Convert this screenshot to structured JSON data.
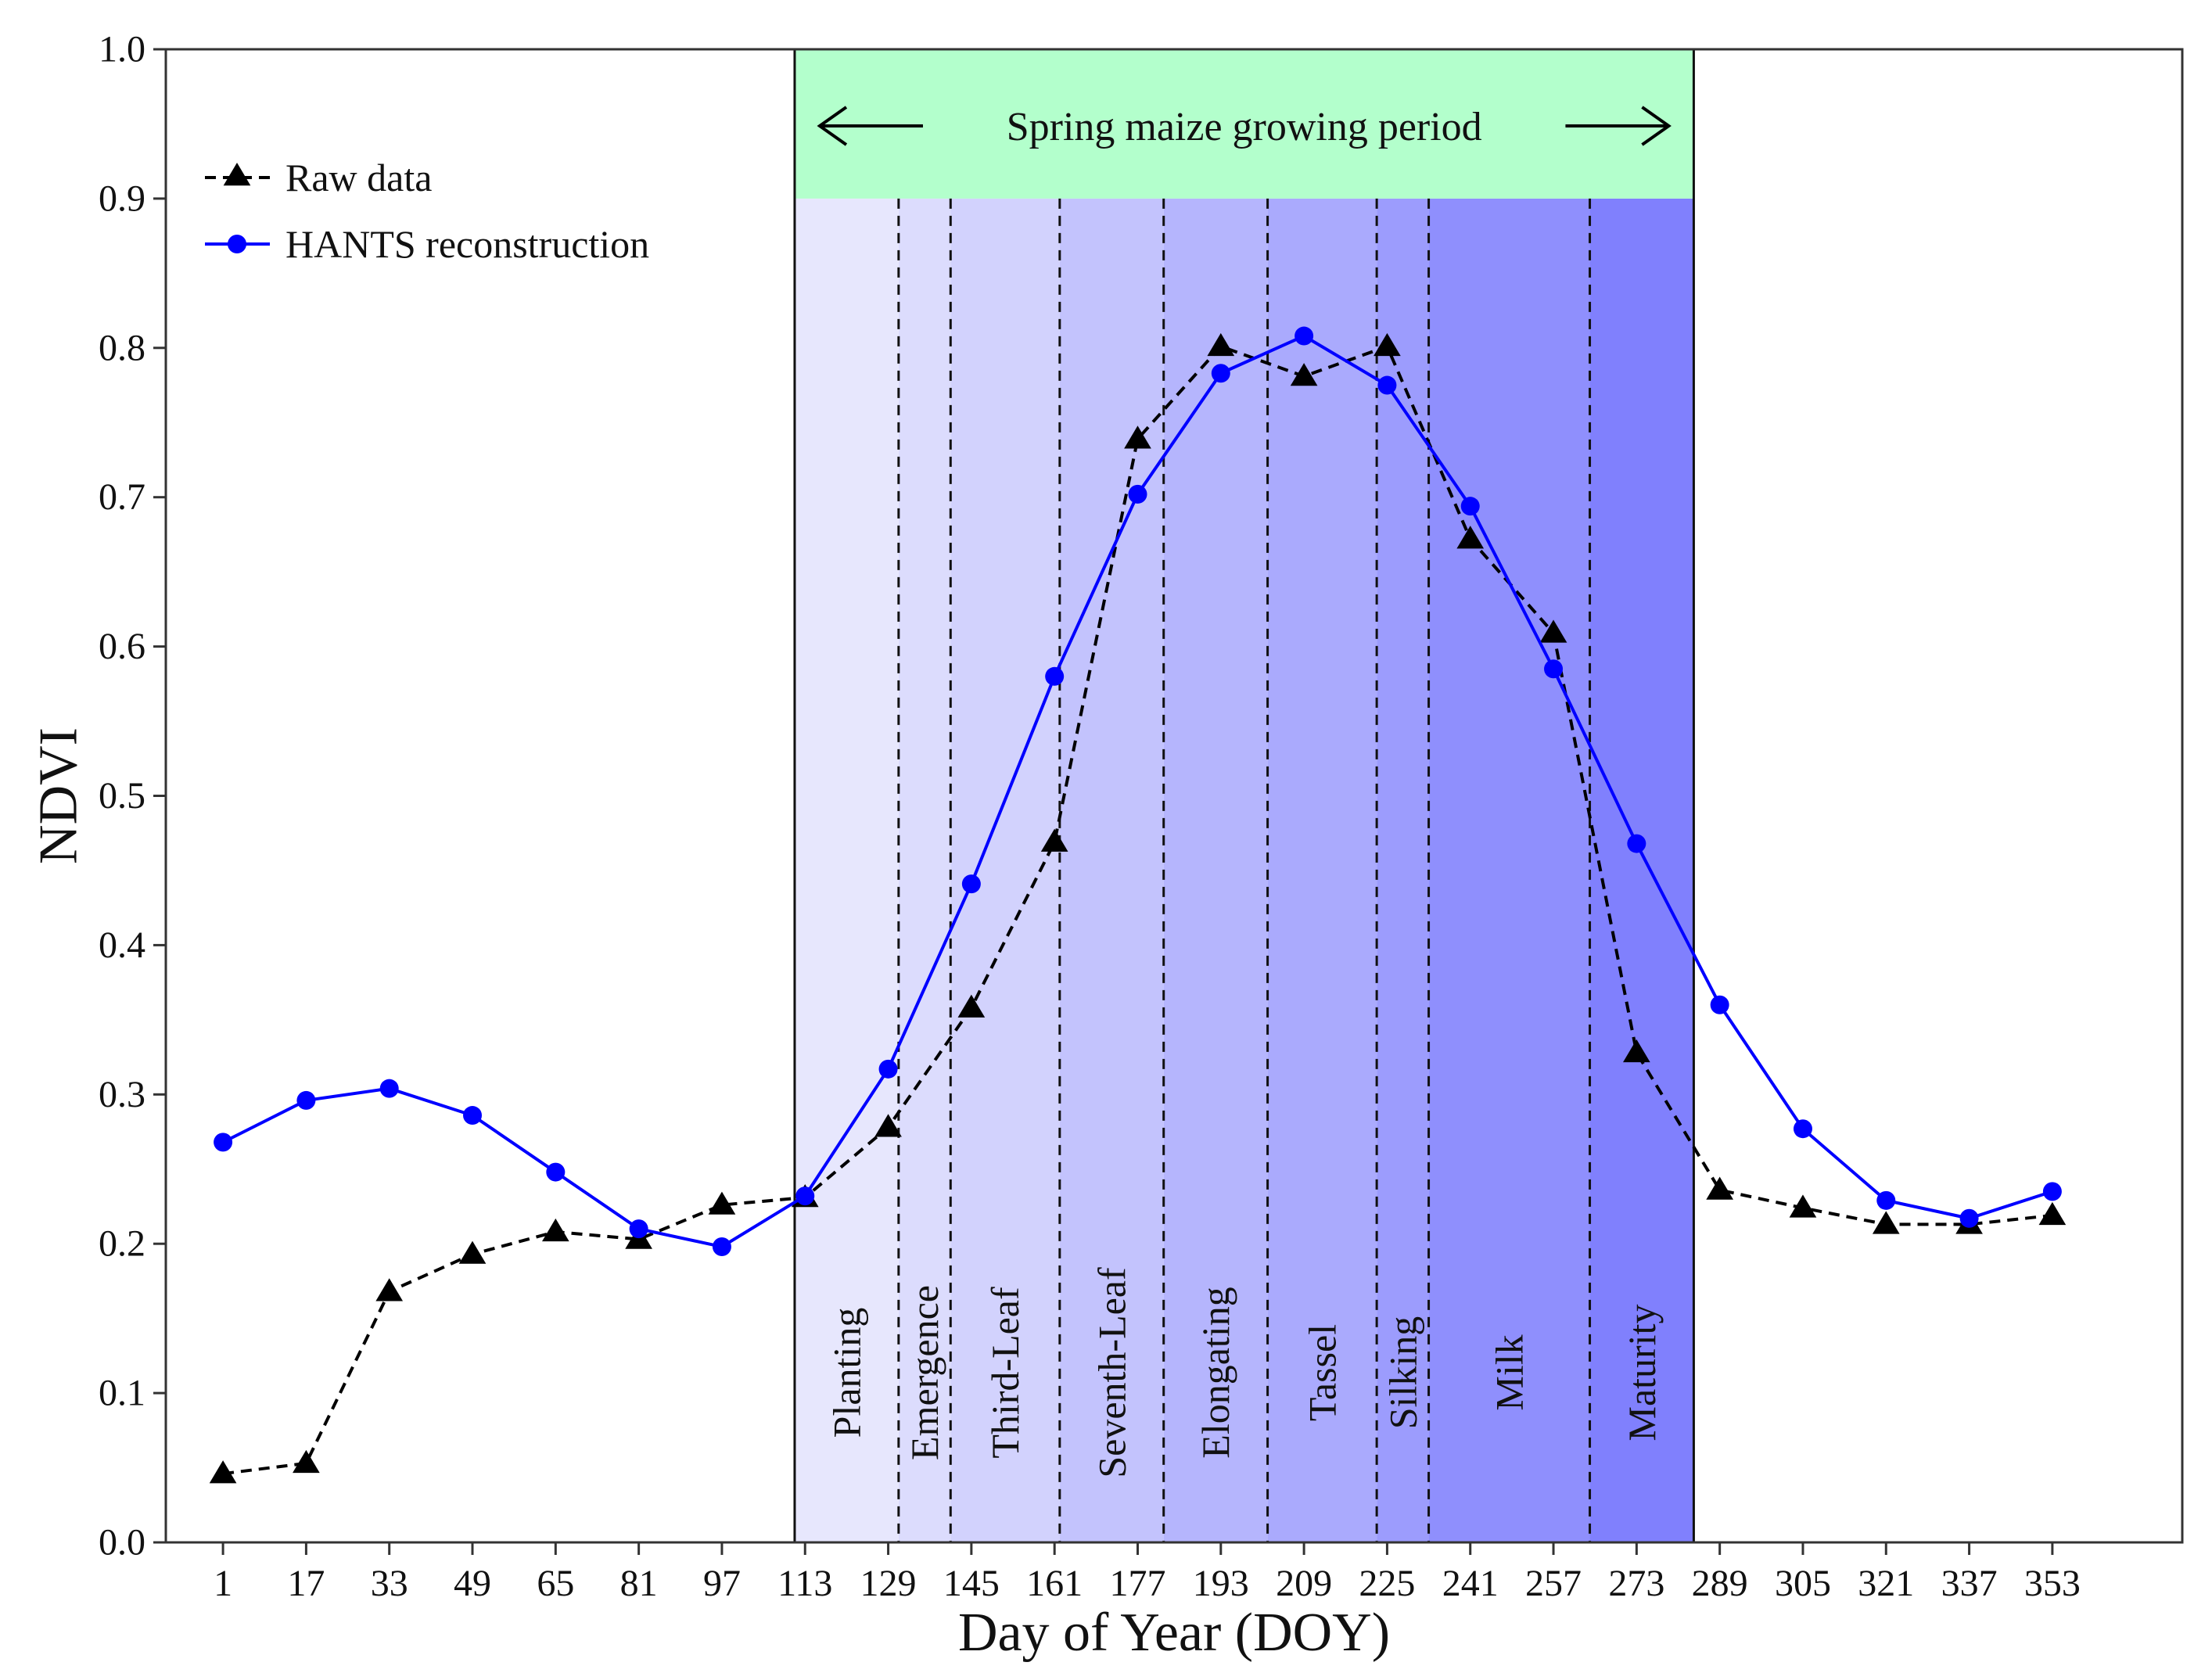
{
  "chart_data": {
    "type": "line",
    "title": "",
    "xlabel": "Day of Year (DOY)",
    "ylabel": "NDVI",
    "xlim": [
      -10,
      378
    ],
    "ylim": [
      0.0,
      1.0
    ],
    "x_ticks": [
      1,
      17,
      33,
      49,
      65,
      81,
      97,
      113,
      129,
      145,
      161,
      177,
      193,
      209,
      225,
      241,
      257,
      273,
      289,
      305,
      321,
      337,
      353
    ],
    "y_ticks": [
      "0.0",
      "0.1",
      "0.2",
      "0.3",
      "0.4",
      "0.5",
      "0.6",
      "0.7",
      "0.8",
      "0.9",
      "1.0"
    ],
    "grid": false,
    "legend_position": "top-left",
    "series": [
      {
        "name": "Raw data",
        "style": "dashed",
        "marker": "triangle",
        "color": "#000000",
        "x": [
          1,
          17,
          33,
          49,
          65,
          81,
          97,
          113,
          129,
          145,
          161,
          177,
          193,
          209,
          225,
          241,
          257,
          273,
          289,
          305,
          321,
          337,
          353
        ],
        "values": [
          0.046,
          0.053,
          0.168,
          0.193,
          0.208,
          0.203,
          0.226,
          0.231,
          0.278,
          0.358,
          0.469,
          0.739,
          0.801,
          0.781,
          0.801,
          0.672,
          0.609,
          0.328,
          0.236,
          0.224,
          0.213,
          0.213,
          0.219
        ]
      },
      {
        "name": "HANTS reconstruction",
        "style": "solid",
        "marker": "circle",
        "color": "#0000ff",
        "x": [
          1,
          17,
          33,
          49,
          65,
          81,
          97,
          113,
          129,
          145,
          161,
          177,
          193,
          209,
          225,
          241,
          257,
          273,
          289,
          305,
          321,
          337,
          353
        ],
        "values": [
          0.268,
          0.296,
          0.304,
          0.286,
          0.248,
          0.21,
          0.198,
          0.232,
          0.317,
          0.441,
          0.58,
          0.702,
          0.783,
          0.808,
          0.775,
          0.694,
          0.585,
          0.468,
          0.36,
          0.277,
          0.229,
          0.217,
          0.235
        ]
      }
    ],
    "growing_period": {
      "label": "Spring maize growing period",
      "start": 111,
      "end": 284,
      "color": "#b3ffcc"
    },
    "stages": [
      {
        "label": "Planting",
        "start": 111,
        "end": 131,
        "color": "#e7e7fd"
      },
      {
        "label": "Emergence",
        "start": 131,
        "end": 141,
        "color": "#dcdcfd"
      },
      {
        "label": "Third-Leaf",
        "start": 141,
        "end": 162,
        "color": "#d2d2fd"
      },
      {
        "label": "Seventh-Leaf",
        "start": 162,
        "end": 182,
        "color": "#c3c3fd"
      },
      {
        "label": "Elongating",
        "start": 182,
        "end": 202,
        "color": "#b5b5fd"
      },
      {
        "label": "Tassel",
        "start": 202,
        "end": 223,
        "color": "#aaaafd"
      },
      {
        "label": "Silking",
        "start": 223,
        "end": 233,
        "color": "#9c9cfd"
      },
      {
        "label": "Milk",
        "start": 233,
        "end": 264,
        "color": "#8f8ffd"
      },
      {
        "label": "Maturity",
        "start": 264,
        "end": 284,
        "color": "#8080fd"
      }
    ]
  }
}
